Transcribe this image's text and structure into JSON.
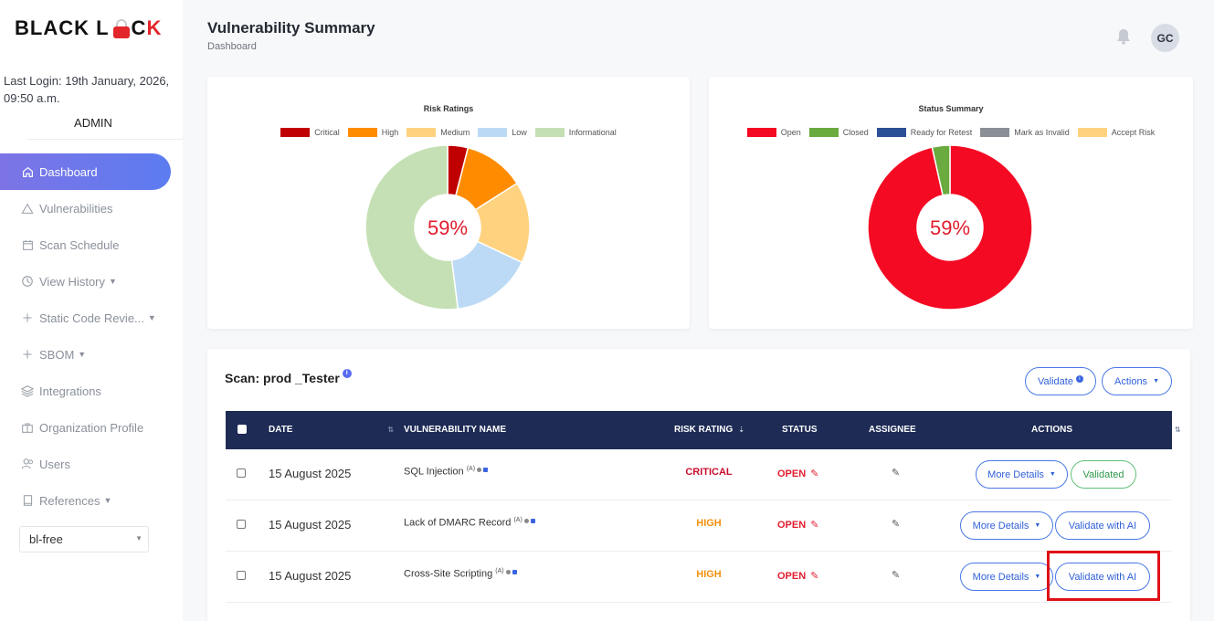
{
  "brand": {
    "logo_part1": "BLACK L",
    "logo_part2": "C",
    "logo_part3": "K"
  },
  "sidebar": {
    "last_login": "Last Login: 19th January, 2026, 09:50 a.m.",
    "role": "ADMIN",
    "items": [
      {
        "label": "Dashboard",
        "icon": "home-icon"
      },
      {
        "label": "Vulnerabilities",
        "icon": "warning-icon"
      },
      {
        "label": "Scan Schedule",
        "icon": "calendar-icon"
      },
      {
        "label": "View History",
        "icon": "clock-icon"
      },
      {
        "label": "Static Code Revie...",
        "icon": "plus-icon"
      },
      {
        "label": "SBOM",
        "icon": "plus-icon"
      },
      {
        "label": "Integrations",
        "icon": "layers-icon"
      },
      {
        "label": "Organization Profile",
        "icon": "briefcase-icon"
      },
      {
        "label": "Users",
        "icon": "users-icon"
      },
      {
        "label": "References",
        "icon": "book-icon"
      }
    ],
    "org_select": "bl-free"
  },
  "header": {
    "title": "Vulnerability Summary",
    "breadcrumb": "Dashboard",
    "avatar_initials": "GC"
  },
  "chart_data": [
    {
      "type": "pie",
      "title": "Risk Ratings",
      "center_label": "59%",
      "legend_placement": "top",
      "categories": [
        "Critical",
        "High",
        "Medium",
        "Low",
        "Informational"
      ],
      "values": [
        4,
        12,
        16,
        16,
        52
      ],
      "colors": [
        "#c00000",
        "#ff8c00",
        "#ffd27f",
        "#bcdaf5",
        "#c5e0b4"
      ]
    },
    {
      "type": "pie",
      "title": "Status Summary",
      "center_label": "59%",
      "legend_placement": "top",
      "categories": [
        "Open",
        "Closed",
        "Ready for Retest",
        "Mark as Invalid",
        "Accept Risk"
      ],
      "values": [
        96.5,
        3.5,
        0,
        0,
        0
      ],
      "colors": [
        "#f50a23",
        "#6aaa3f",
        "#2d4f96",
        "#8a8f96",
        "#ffd27f"
      ]
    }
  ],
  "scan": {
    "title": "Scan: prod _Tester",
    "validate_label": "Validate",
    "actions_label": "Actions",
    "columns": [
      "DATE",
      "VULNERABILITY NAME",
      "RISK RATING",
      "STATUS",
      "ASSIGNEE",
      "ACTIONS"
    ],
    "rows": [
      {
        "date": "15 August 2025",
        "name": "SQL Injection",
        "tag": "(A)",
        "risk": "CRITICAL",
        "risk_color": "#c8102e",
        "status": "OPEN",
        "more_label": "More Details",
        "action_label": "Validated"
      },
      {
        "date": "15 August 2025",
        "name": "Lack of DMARC Record",
        "tag": "(A)",
        "risk": "HIGH",
        "risk_color": "#f0900c",
        "status": "OPEN",
        "more_label": "More Details",
        "action_label": "Validate with AI"
      },
      {
        "date": "15 August 2025",
        "name": "Cross-Site Scripting",
        "tag": "(A)",
        "risk": "HIGH",
        "risk_color": "#f0900c",
        "status": "OPEN",
        "more_label": "More Details",
        "action_label": "Validate with AI"
      }
    ]
  }
}
